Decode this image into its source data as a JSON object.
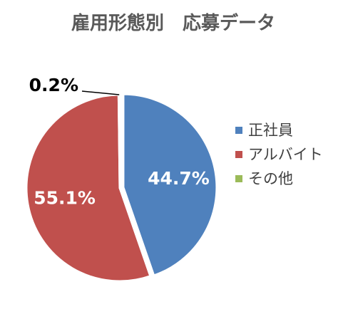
{
  "chart_data": {
    "type": "pie",
    "title": "雇用形態別　応募データ",
    "legend_position": "right",
    "categories": [
      "正社員",
      "アルバイト",
      "その他"
    ],
    "values": [
      44.7,
      55.1,
      0.2
    ],
    "value_labels": [
      "44.7%",
      "55.1%",
      "0.2%"
    ],
    "colors": [
      "#4F81BD",
      "#C0504D",
      "#9BBB59"
    ],
    "label_colors": [
      "#ffffff",
      "#ffffff",
      "#000000"
    ],
    "exploded_slice": "正社員"
  }
}
